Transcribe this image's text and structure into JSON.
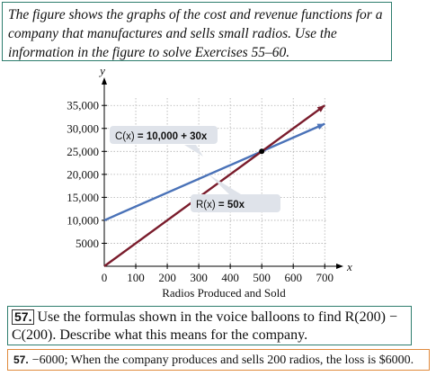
{
  "intro": {
    "text": "The figure shows the graphs of the cost and revenue functions for a company that manufactures and sells small radios. Use the information in the figure to solve Exercises 55–60."
  },
  "chart_data": {
    "type": "line",
    "title": "",
    "xlabel": "Radios Produced and Sold",
    "ylabel": "",
    "x_axis_letter": "x",
    "y_axis_letter": "y",
    "xlim": [
      0,
      725
    ],
    "ylim": [
      0,
      37000
    ],
    "x_ticks": [
      0,
      100,
      200,
      300,
      400,
      500,
      600,
      700
    ],
    "x_tick_labels": [
      "0",
      "100",
      "200",
      "300",
      "400",
      "500",
      "600",
      "700"
    ],
    "y_ticks": [
      5000,
      10000,
      15000,
      20000,
      25000,
      30000,
      35000
    ],
    "y_tick_labels": [
      "5000",
      "10,000",
      "15,000",
      "20,000",
      "25,000",
      "30,000",
      "35,000"
    ],
    "grid": true,
    "series": [
      {
        "name": "C(x) = 10,000 + 30x",
        "color": "#4a72b8",
        "x": [
          0,
          700
        ],
        "y": [
          10000,
          31000
        ]
      },
      {
        "name": "R(x) = 50x",
        "color": "#7a1c2c",
        "x": [
          0,
          700
        ],
        "y": [
          0,
          35000
        ]
      }
    ],
    "intersection": {
      "x": 500,
      "y": 25000
    },
    "annotations": [
      {
        "text_prefix": "C(x)",
        "text_rest": " = 10,000 + 30x",
        "series": 0
      },
      {
        "text_prefix": "R(x)",
        "text_rest": " = 50x",
        "series": 1
      }
    ]
  },
  "question": {
    "number": "57.",
    "text": "Use the formulas shown in the voice balloons to find R(200) − C(200). Describe what this means for the company."
  },
  "answer": {
    "number": "57.",
    "text": "−6000; When the company produces and sells 200 radios, the loss is $6000."
  },
  "colors": {
    "cost_line": "#4a72b8",
    "revenue_line": "#7a1c2c",
    "box_border": "#2e7d6e",
    "answer_border": "#e08a3c",
    "grid": "#b0b0b0"
  }
}
